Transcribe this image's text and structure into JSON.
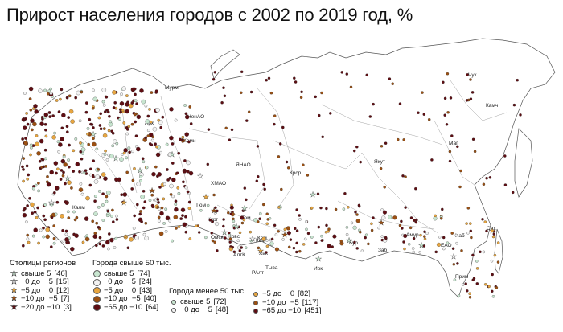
{
  "title": "Прирост населения городов с 2002 по 2019 год, %",
  "colors": {
    "c_gt5": "#c8e6d0",
    "c_0_5": "#f3f3f3",
    "c_m5_0": "#e8a640",
    "c_m10_m5": "#9c5012",
    "c_m20_m10": "#5e0d12",
    "c_m65_m10": "#5e0d12",
    "border": "#666666"
  },
  "legend_capitals": {
    "title": "Столицы регионов",
    "rows": [
      {
        "label": "свыше 5",
        "count": "[46]",
        "color": "#c8e6d0"
      },
      {
        "label": "  0 до    5",
        "count": "[15]",
        "color": "#f3f3f3"
      },
      {
        "label": "−5 до    0",
        "count": "[12]",
        "color": "#e8a640"
      },
      {
        "label": "−10 до  −5",
        "count": "[7]",
        "color": "#9c5012"
      },
      {
        "label": "−20 до −10",
        "count": "[3]",
        "color": "#5e0d12"
      }
    ]
  },
  "legend_big": {
    "title": "Города свыше 50 тыс.",
    "rows": [
      {
        "label": "свыше 5",
        "count": "[74]",
        "color": "#c8e6d0"
      },
      {
        "label": "  0 до    5",
        "count": "[24]",
        "color": "#f3f3f3"
      },
      {
        "label": "−5 до    0",
        "count": "[43]",
        "color": "#e8a640"
      },
      {
        "label": "−10 до  −5",
        "count": "[40]",
        "color": "#9c5012"
      },
      {
        "label": "−65 до −10",
        "count": "[64]",
        "color": "#5e0d12"
      }
    ]
  },
  "legend_small": {
    "title": "Города менее 50 тыс.",
    "rows_left": [
      {
        "label": "свыше 5",
        "count": "[72]",
        "color": "#c8e6d0"
      },
      {
        "label": "  0 до    5",
        "count": "[48]",
        "color": "#f3f3f3"
      }
    ],
    "rows_right": [
      {
        "label": "−5 до    0",
        "count": "[82]",
        "color": "#e8a640"
      },
      {
        "label": "−10 до  −5",
        "count": "[117]",
        "color": "#9c5012"
      },
      {
        "label": "−65 до −10",
        "count": "[451]",
        "color": "#5e0d12"
      }
    ]
  },
  "region_labels": [
    "Чук",
    "Камч",
    "Маг",
    "Якут",
    "Крср",
    "ЯНАО",
    "ХМАО",
    "Коми",
    "Арх",
    "Мурм",
    "НенАО",
    "Том",
    "Тюм",
    "Кург",
    "Новс",
    "Омск",
    "АлтК",
    "РАлт",
    "Кем",
    "Хак",
    "Тыва",
    "Ирк",
    "Бур",
    "Заб",
    "Амур",
    "Хаб",
    "ЕАО",
    "Прим",
    "Сах",
    "Калм",
    "Кем"
  ]
}
